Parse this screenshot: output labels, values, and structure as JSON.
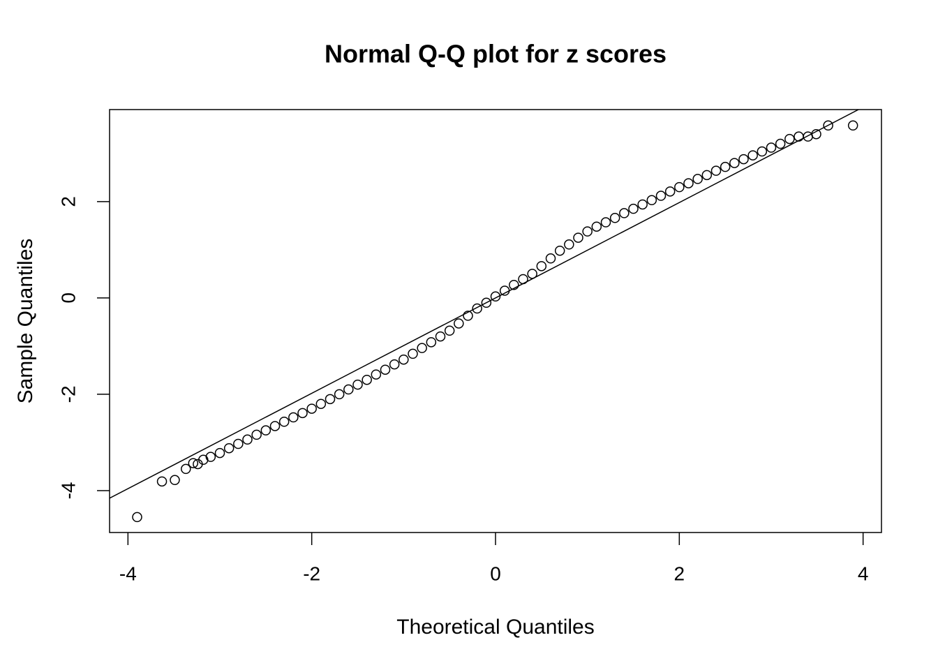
{
  "chart_data": {
    "type": "scatter",
    "title": "Normal Q-Q plot for z scores",
    "x_label": "Theoretical Quantiles",
    "y_label": "Sample Quantiles",
    "xlim": [
      -4.2,
      4.2
    ],
    "ylim": [
      -4.87,
      3.91
    ],
    "xticks": [
      -4,
      -2,
      0,
      2,
      4
    ],
    "yticks": [
      -4,
      -2,
      0,
      2
    ],
    "reference_line": {
      "intercept": 0.0,
      "slope": 0.99
    },
    "series": [
      {
        "color": "#000000",
        "x": [
          -3.9,
          -3.63,
          -3.49,
          -3.37,
          -3.29,
          -3.24,
          -3.18,
          -3.1,
          -3.0,
          -2.9,
          -2.8,
          -2.7,
          -2.6,
          -2.5,
          -2.4,
          -2.3,
          -2.2,
          -2.1,
          -2.0,
          -1.9,
          -1.8,
          -1.7,
          -1.6,
          -1.5,
          -1.4,
          -1.3,
          -1.2,
          -1.1,
          -1.0,
          -0.9,
          -0.8,
          -0.7,
          -0.6,
          -0.5,
          -0.4,
          -0.3,
          -0.2,
          -0.1,
          0.0,
          0.1,
          0.2,
          0.3,
          0.4,
          0.5,
          0.6,
          0.7,
          0.8,
          0.9,
          1.0,
          1.1,
          1.2,
          1.3,
          1.4,
          1.5,
          1.6,
          1.7,
          1.8,
          1.9,
          2.0,
          2.1,
          2.2,
          2.3,
          2.4,
          2.5,
          2.6,
          2.7,
          2.8,
          2.9,
          3.0,
          3.1,
          3.2,
          3.3,
          3.4,
          3.49,
          3.62,
          3.89
        ],
        "values": [
          -4.55,
          -3.81,
          -3.78,
          -3.55,
          -3.43,
          -3.45,
          -3.36,
          -3.3,
          -3.22,
          -3.12,
          -3.03,
          -2.94,
          -2.84,
          -2.75,
          -2.66,
          -2.57,
          -2.48,
          -2.39,
          -2.3,
          -2.2,
          -2.1,
          -2.0,
          -1.9,
          -1.8,
          -1.7,
          -1.59,
          -1.49,
          -1.38,
          -1.28,
          -1.16,
          -1.04,
          -0.92,
          -0.8,
          -0.68,
          -0.53,
          -0.37,
          -0.22,
          -0.1,
          0.03,
          0.15,
          0.27,
          0.39,
          0.5,
          0.66,
          0.82,
          0.98,
          1.11,
          1.25,
          1.38,
          1.48,
          1.57,
          1.66,
          1.76,
          1.85,
          1.94,
          2.03,
          2.12,
          2.21,
          2.3,
          2.38,
          2.47,
          2.55,
          2.64,
          2.72,
          2.8,
          2.88,
          2.96,
          3.04,
          3.12,
          3.2,
          3.3,
          3.35,
          3.35,
          3.4,
          3.58,
          3.58
        ]
      }
    ]
  }
}
